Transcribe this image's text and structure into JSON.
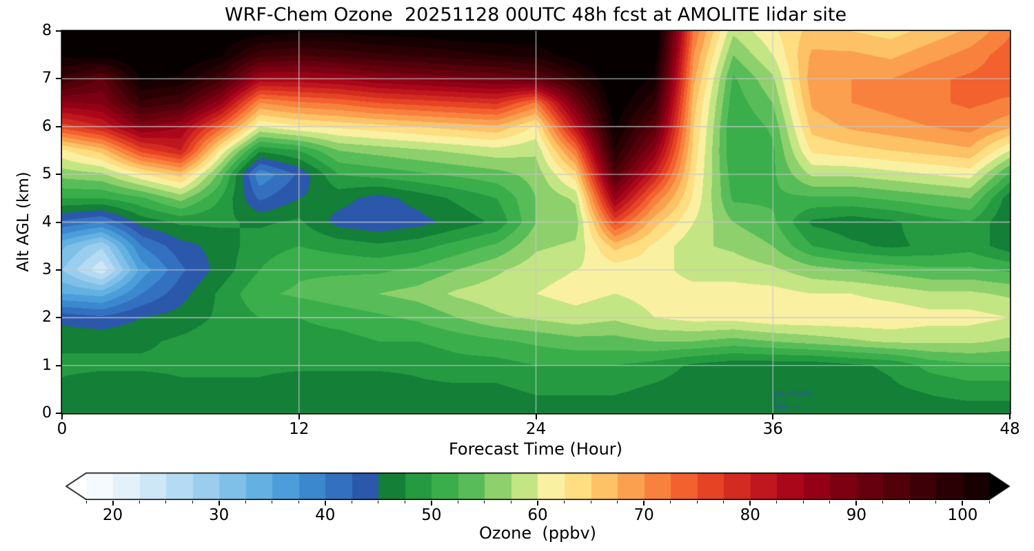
{
  "title": "WRF-Chem Ozone  20251128 00UTC 48h fcst at AMOLITE lidar site",
  "chart_data": {
    "type": "heatmap",
    "title": "WRF-Chem Ozone  20251128 00UTC 48h fcst at AMOLITE lidar site",
    "xlabel": "Forecast Time (Hour)",
    "ylabel": "Alt AGL (km)",
    "xlim": [
      0,
      48
    ],
    "ylim": [
      0,
      8
    ],
    "x_ticks": [
      0,
      12,
      24,
      36,
      48
    ],
    "y_ticks": [
      0,
      1,
      2,
      3,
      4,
      5,
      6,
      7,
      8
    ],
    "grid": true,
    "grid_color": "#c8c8c8",
    "x_gridlines": [
      12,
      24,
      36
    ],
    "y_gridlines": [
      1,
      2,
      3,
      4,
      5,
      6,
      7
    ],
    "x_hours": [
      0,
      2,
      4,
      6,
      8,
      10,
      12,
      14,
      16,
      18,
      20,
      22,
      24,
      26,
      28,
      30,
      32,
      34,
      36,
      38,
      40,
      42,
      44,
      46,
      48
    ],
    "y_alt_km_desc": [
      8,
      7.5,
      7,
      6.5,
      6,
      5.5,
      5,
      4.5,
      4,
      3.5,
      3,
      2.5,
      2,
      1.5,
      1,
      0.5,
      0
    ],
    "values_ppbv": [
      [
        105,
        105,
        105,
        105,
        105,
        104,
        103,
        103,
        104,
        104,
        105,
        105,
        105,
        106,
        108,
        107,
        72,
        58,
        62,
        66,
        65,
        64,
        66,
        68,
        72
      ],
      [
        103,
        104,
        105,
        105,
        103,
        96,
        95,
        96,
        97,
        98,
        99,
        100,
        101,
        104,
        107,
        105,
        70,
        55,
        60,
        68,
        68,
        67,
        69,
        71,
        74
      ],
      [
        97,
        92,
        103,
        102,
        96,
        84,
        84,
        85,
        87,
        88,
        89,
        90,
        92,
        98,
        106,
        102,
        68,
        52,
        57,
        69,
        70,
        70,
        72,
        73,
        74
      ],
      [
        87,
        88,
        97,
        95,
        86,
        70,
        72,
        73,
        75,
        76,
        77,
        78,
        72,
        90,
        105,
        98,
        66,
        51,
        55,
        68,
        70,
        71,
        72,
        73,
        72
      ],
      [
        76,
        80,
        88,
        85,
        74,
        60,
        62,
        63,
        64,
        65,
        66,
        67,
        62,
        82,
        103,
        93,
        65,
        50,
        53,
        66,
        68,
        69,
        70,
        71,
        68
      ],
      [
        62,
        66,
        76,
        80,
        62,
        48,
        50,
        55,
        56,
        57,
        58,
        59,
        58,
        72,
        100,
        87,
        64,
        50,
        52,
        63,
        64,
        65,
        66,
        67,
        60
      ],
      [
        56,
        57,
        62,
        66,
        54,
        38,
        43,
        50,
        51,
        52,
        53,
        54,
        56,
        64,
        94,
        80,
        63,
        51,
        52,
        58,
        58,
        59,
        60,
        61,
        52
      ],
      [
        50,
        50,
        52,
        56,
        50,
        42,
        45,
        46,
        44,
        46,
        48,
        50,
        55,
        58,
        86,
        72,
        62,
        52,
        52,
        52,
        52,
        53,
        54,
        55,
        46
      ],
      [
        42,
        40,
        46,
        48,
        48,
        47,
        48,
        44,
        43,
        44,
        46,
        48,
        55,
        56,
        76,
        66,
        60,
        55,
        53,
        47,
        46,
        47,
        49,
        50,
        45
      ],
      [
        33,
        28,
        40,
        44,
        46,
        49,
        50,
        49,
        48,
        49,
        51,
        53,
        57,
        58,
        66,
        62,
        58,
        57,
        55,
        50,
        48,
        47,
        48,
        49,
        46
      ],
      [
        30,
        23,
        36,
        42,
        46,
        50,
        52,
        52,
        52,
        53,
        55,
        57,
        59,
        60,
        61,
        61,
        59,
        59,
        58,
        56,
        55,
        54,
        53,
        53,
        52
      ],
      [
        35,
        34,
        40,
        44,
        48,
        52,
        53,
        54,
        55,
        56,
        58,
        59,
        60,
        61,
        60,
        61,
        61,
        61,
        61,
        60,
        60,
        59,
        58,
        58,
        57
      ],
      [
        44,
        43,
        45,
        46,
        48,
        50,
        50,
        51,
        52,
        53,
        55,
        57,
        58,
        59,
        58,
        60,
        61,
        61,
        62,
        62,
        62,
        62,
        61,
        61,
        60
      ],
      [
        47,
        47,
        47,
        48,
        49,
        49,
        49,
        49,
        50,
        50,
        51,
        52,
        53,
        54,
        54,
        55,
        55,
        54,
        55,
        56,
        57,
        58,
        58,
        58,
        57
      ],
      [
        48,
        48,
        48,
        48,
        48,
        48,
        48,
        48,
        48,
        48,
        49,
        49,
        50,
        50,
        50,
        49,
        47,
        46,
        46,
        46,
        47,
        48,
        51,
        52,
        52
      ],
      [
        47,
        46,
        46,
        47,
        47,
        47,
        46,
        46,
        46,
        47,
        47,
        47,
        48,
        48,
        48,
        47,
        46,
        46,
        45,
        45,
        46,
        47,
        48,
        49,
        49
      ],
      [
        45,
        45,
        45,
        45,
        46,
        45,
        45,
        45,
        45,
        46,
        46,
        46,
        46,
        46,
        46,
        46,
        45,
        45,
        45,
        45,
        45,
        45,
        46,
        46,
        46
      ]
    ],
    "colormap": {
      "vmin": 15,
      "vmax": 105,
      "bin_size": 2.5,
      "under_color": "#ffffff",
      "over_color": "#000000",
      "colors": [
        "#ffffff",
        "#f4fafd",
        "#e2f1fa",
        "#cde7f7",
        "#b4dbf3",
        "#9bceee",
        "#7fc0e8",
        "#64b0e1",
        "#4c9eda",
        "#3c88cf",
        "#3370c0",
        "#2c58ab",
        "#137f37",
        "#259a40",
        "#39ae4b",
        "#58bd58",
        "#8ed06c",
        "#c4e583",
        "#f9f0a2",
        "#fede81",
        "#fdc166",
        "#fba04f",
        "#f8823d",
        "#f2612e",
        "#e64325",
        "#d32b20",
        "#c0161d",
        "#ab071a",
        "#940016",
        "#7d0012",
        "#67000e",
        "#52000a",
        "#3e0007",
        "#2b0004",
        "#180002",
        "#060000"
      ]
    },
    "colorbar": {
      "label": "Ozone  (ppbv)",
      "ticks": [
        20,
        30,
        40,
        50,
        60,
        70,
        80,
        90,
        100
      ],
      "display_range": [
        17.5,
        102.5
      ],
      "extend": "both"
    }
  }
}
